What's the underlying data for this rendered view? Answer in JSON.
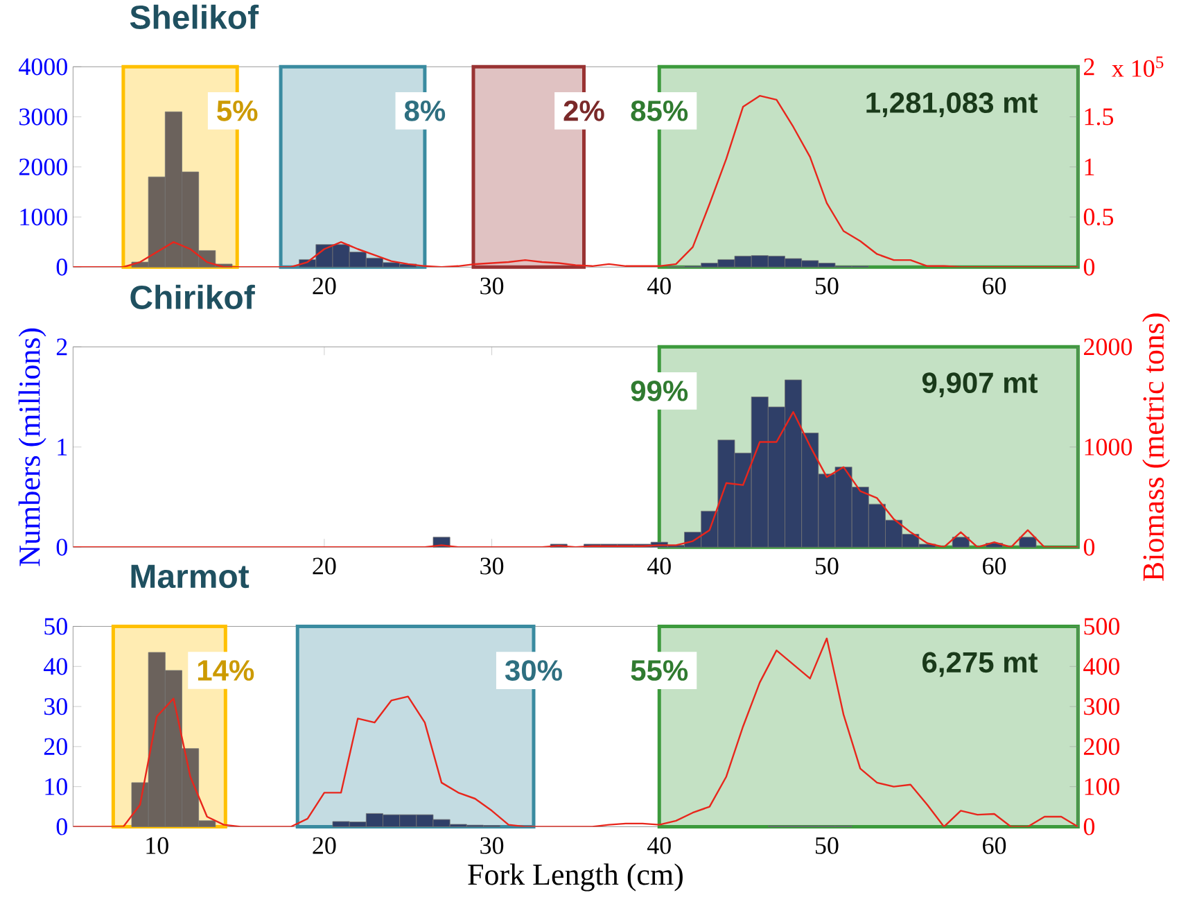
{
  "chart_data": [
    {
      "type": "bar",
      "title": "Shelikof",
      "xlim": [
        5,
        65
      ],
      "xticks": [
        20,
        30,
        40,
        50,
        60
      ],
      "ylim": [
        0,
        4000
      ],
      "yticks": [
        0,
        1000,
        2000,
        3000,
        4000
      ],
      "y2lim": [
        0,
        2
      ],
      "y2ticks": [
        0,
        0.5,
        1,
        1.5,
        2
      ],
      "series": [
        {
          "x": [
            9,
            10,
            11,
            12,
            13,
            14,
            19,
            20,
            21,
            22,
            23,
            24,
            25,
            41,
            42,
            43,
            44,
            45,
            46,
            47,
            48,
            49,
            50,
            51,
            52
          ],
          "values": [
            100,
            1800,
            3100,
            1900,
            330,
            60,
            150,
            450,
            450,
            300,
            180,
            90,
            60,
            10,
            20,
            80,
            150,
            220,
            230,
            220,
            170,
            130,
            80,
            20,
            20
          ],
          "colors": [
            "#6b625c",
            "#6b625c",
            "#6b625c",
            "#6b625c",
            "#6b625c",
            "#6b625c",
            "#2f3f68",
            "#2f3f68",
            "#2f3f68",
            "#2f3f68",
            "#2f3f68",
            "#2f3f68",
            "#2f3f68",
            "#2f3f68",
            "#2f3f68",
            "#2f3f68",
            "#2f3f68",
            "#2f3f68",
            "#2f3f68",
            "#2f3f68",
            "#2f3f68",
            "#2f3f68",
            "#2f3f68",
            "#2f3f68",
            "#2f3f68"
          ]
        },
        {
          "type": "line",
          "axis": "y2",
          "color": "#e8261c",
          "x": [
            5,
            6,
            7,
            8,
            9,
            10,
            11,
            12,
            13,
            14,
            15,
            16,
            17,
            18,
            19,
            20,
            21,
            22,
            23,
            24,
            25,
            26,
            27,
            28,
            29,
            30,
            31,
            32,
            33,
            34,
            35,
            36,
            37,
            38,
            39,
            40,
            41,
            42,
            43,
            44,
            45,
            46,
            47,
            48,
            49,
            50,
            51,
            52,
            53,
            54,
            55,
            56,
            57,
            58,
            59,
            60,
            61,
            62,
            63,
            64,
            65
          ],
          "values": [
            0,
            0,
            0,
            0,
            0.05,
            0.15,
            0.25,
            0.18,
            0.05,
            0,
            0,
            0,
            0,
            0,
            0.05,
            0.18,
            0.25,
            0.18,
            0.12,
            0.06,
            0.03,
            0.01,
            0,
            0.01,
            0.03,
            0.04,
            0.05,
            0.07,
            0.05,
            0.04,
            0.02,
            0.01,
            0.03,
            0.01,
            0.01,
            0.01,
            0.03,
            0.2,
            0.63,
            1.08,
            1.6,
            1.71,
            1.67,
            1.4,
            1.1,
            0.64,
            0.36,
            0.26,
            0.13,
            0.07,
            0.07,
            0.01,
            0.01,
            0,
            0,
            0,
            0,
            0,
            0,
            0,
            0
          ]
        }
      ],
      "bands": [
        {
          "axis": "x",
          "from": 8,
          "to": 14.8,
          "label": "5%",
          "color": "#ffc000"
        },
        {
          "axis": "x",
          "from": 17.4,
          "to": 26,
          "label": "8%",
          "color": "#3a8ba0"
        },
        {
          "axis": "x",
          "from": 28.9,
          "to": 35.5,
          "label": "2%",
          "color": "#993333"
        },
        {
          "axis": "x",
          "from": 40,
          "to": 65,
          "label": "85%",
          "color": "#3c9a3c"
        }
      ],
      "annotations": [
        "1,281,083 mt",
        "x 10$^{5}$"
      ]
    },
    {
      "type": "bar",
      "title": "Chirikof",
      "ylabel": "Numbers (millions)",
      "y2label": "Biomass (metric tons)",
      "xlim": [
        5,
        65
      ],
      "xticks": [
        20,
        30,
        40,
        50,
        60
      ],
      "ylim": [
        0,
        2
      ],
      "yticks": [
        0,
        1,
        2
      ],
      "y2lim": [
        0,
        2000
      ],
      "y2ticks": [
        0,
        1000,
        2000
      ],
      "series": [
        {
          "color": "#2f3f68",
          "x": [
            27,
            34,
            36,
            37,
            38,
            39,
            40,
            41,
            42,
            43,
            44,
            45,
            46,
            47,
            48,
            49,
            50,
            51,
            52,
            53,
            54,
            55,
            56,
            58,
            60,
            62
          ],
          "values": [
            0.1,
            0.03,
            0.03,
            0.03,
            0.03,
            0.03,
            0.05,
            0.02,
            0.15,
            0.36,
            1.07,
            0.94,
            1.5,
            1.4,
            1.67,
            1.14,
            0.73,
            0.8,
            0.6,
            0.43,
            0.27,
            0.13,
            0.03,
            0.1,
            0.04,
            0.1
          ]
        },
        {
          "type": "line",
          "axis": "y2",
          "color": "#e8261c",
          "x": [
            5,
            6,
            7,
            8,
            9,
            10,
            11,
            12,
            13,
            14,
            15,
            16,
            17,
            18,
            19,
            20,
            21,
            22,
            23,
            24,
            25,
            26,
            27,
            28,
            29,
            30,
            31,
            32,
            33,
            34,
            35,
            36,
            37,
            38,
            39,
            40,
            41,
            42,
            43,
            44,
            45,
            46,
            47,
            48,
            49,
            50,
            51,
            52,
            53,
            54,
            55,
            56,
            57,
            58,
            59,
            60,
            61,
            62,
            63,
            64,
            65
          ],
          "values": [
            0,
            0,
            0,
            0,
            0,
            0,
            0,
            0,
            0,
            0,
            0,
            0,
            0,
            0,
            0,
            0,
            0,
            0,
            0,
            0,
            0,
            0,
            20,
            0,
            0,
            0,
            0,
            0,
            0,
            15,
            0,
            10,
            10,
            10,
            10,
            20,
            20,
            60,
            170,
            640,
            620,
            1050,
            1050,
            1350,
            1010,
            700,
            800,
            560,
            490,
            280,
            150,
            40,
            0,
            150,
            0,
            50,
            0,
            170,
            0,
            0,
            0
          ]
        }
      ],
      "bands": [
        {
          "axis": "x",
          "from": 40,
          "to": 65,
          "label": "99%",
          "color": "#3c9a3c"
        }
      ],
      "annotations": [
        "9,907 mt"
      ]
    },
    {
      "type": "bar",
      "title": "Marmot",
      "xlabel": "Fork Length (cm)",
      "xlim": [
        5,
        65
      ],
      "xticks": [
        10,
        20,
        30,
        40,
        50,
        60
      ],
      "ylim": [
        0,
        50
      ],
      "yticks": [
        0,
        10,
        20,
        30,
        40,
        50
      ],
      "y2lim": [
        0,
        500
      ],
      "y2ticks": [
        0,
        100,
        200,
        300,
        400,
        500
      ],
      "series": [
        {
          "x": [
            9,
            10,
            11,
            12,
            13,
            21,
            22,
            23,
            24,
            25,
            26,
            27,
            28,
            29,
            30,
            47,
            48,
            49,
            50,
            51
          ],
          "values": [
            11,
            43.5,
            39,
            19.5,
            1.5,
            1.3,
            1.2,
            3.3,
            3,
            3,
            3,
            1.8,
            0.6,
            0.4,
            0.3,
            0.2,
            0.2,
            0.2,
            0.2,
            0.2
          ],
          "colors": [
            "#6b625c",
            "#6b625c",
            "#6b625c",
            "#6b625c",
            "#6b625c",
            "#2f3f68",
            "#2f3f68",
            "#2f3f68",
            "#2f3f68",
            "#2f3f68",
            "#2f3f68",
            "#2f3f68",
            "#2f3f68",
            "#2f3f68",
            "#2f3f68",
            "#2f3f68",
            "#2f3f68",
            "#2f3f68",
            "#2f3f68",
            "#2f3f68"
          ]
        },
        {
          "type": "line",
          "axis": "y2",
          "color": "#e8261c",
          "x": [
            5,
            6,
            7,
            8,
            9,
            10,
            11,
            12,
            13,
            14,
            15,
            16,
            17,
            18,
            19,
            20,
            21,
            22,
            23,
            24,
            25,
            26,
            27,
            28,
            29,
            30,
            31,
            32,
            33,
            34,
            35,
            36,
            37,
            38,
            39,
            40,
            41,
            42,
            43,
            44,
            45,
            46,
            47,
            48,
            49,
            50,
            51,
            52,
            53,
            54,
            55,
            56,
            57,
            58,
            59,
            60,
            61,
            62,
            63,
            64,
            65
          ],
          "values": [
            0,
            0,
            0,
            0,
            55,
            275,
            320,
            125,
            25,
            5,
            0,
            0,
            0,
            0,
            20,
            85,
            85,
            270,
            260,
            315,
            325,
            260,
            110,
            85,
            70,
            40,
            5,
            0,
            0,
            0,
            0,
            0,
            5,
            8,
            8,
            5,
            15,
            35,
            50,
            125,
            250,
            360,
            440,
            405,
            370,
            470,
            280,
            145,
            110,
            100,
            105,
            55,
            0,
            40,
            30,
            32,
            0,
            0,
            25,
            25,
            0
          ]
        }
      ],
      "bands": [
        {
          "axis": "x",
          "from": 7.4,
          "to": 14.1,
          "label": "14%",
          "color": "#ffc000"
        },
        {
          "axis": "x",
          "from": 18.4,
          "to": 32.5,
          "label": "30%",
          "color": "#3a8ba0"
        },
        {
          "axis": "x",
          "from": 40,
          "to": 65,
          "label": "55%",
          "color": "#3c9a3c"
        }
      ],
      "annotations": [
        "6,275 mt"
      ]
    }
  ]
}
